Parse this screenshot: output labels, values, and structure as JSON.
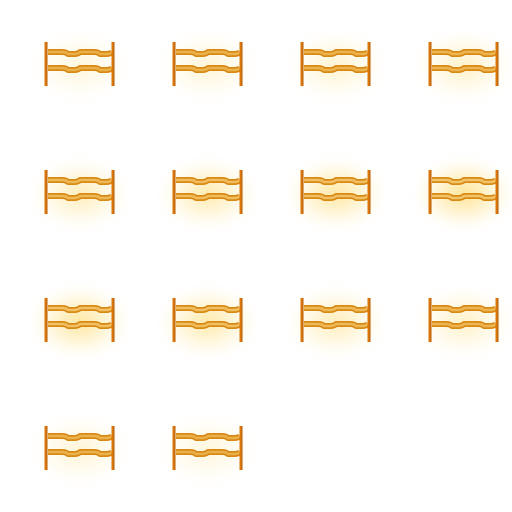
{
  "sprite_sheet": {
    "columns": 4,
    "rows": 4,
    "frame_count": 14,
    "background_color": "#ffffff",
    "sprite_name": "wooden-fence-icon",
    "colors": {
      "post": "#d9770a",
      "post_dark": "#b85f05",
      "rail_outline": "#d98a14",
      "rail_fill": "#f2c46a",
      "glow": "#ffd24a"
    },
    "frames": [
      {
        "name": "frame-1",
        "glow_intensity": 0.15
      },
      {
        "name": "frame-2",
        "glow_intensity": 0.25
      },
      {
        "name": "frame-3",
        "glow_intensity": 0.3
      },
      {
        "name": "frame-4",
        "glow_intensity": 0.4
      },
      {
        "name": "frame-5",
        "glow_intensity": 0.55
      },
      {
        "name": "frame-6",
        "glow_intensity": 0.7
      },
      {
        "name": "frame-7",
        "glow_intensity": 0.85
      },
      {
        "name": "frame-8",
        "glow_intensity": 1.0
      },
      {
        "name": "frame-9",
        "glow_intensity": 0.9
      },
      {
        "name": "frame-10",
        "glow_intensity": 0.75
      },
      {
        "name": "frame-11",
        "glow_intensity": 0.55
      },
      {
        "name": "frame-12",
        "glow_intensity": 0.4
      },
      {
        "name": "frame-13",
        "glow_intensity": 0.25
      },
      {
        "name": "frame-14",
        "glow_intensity": 0.15
      }
    ]
  }
}
